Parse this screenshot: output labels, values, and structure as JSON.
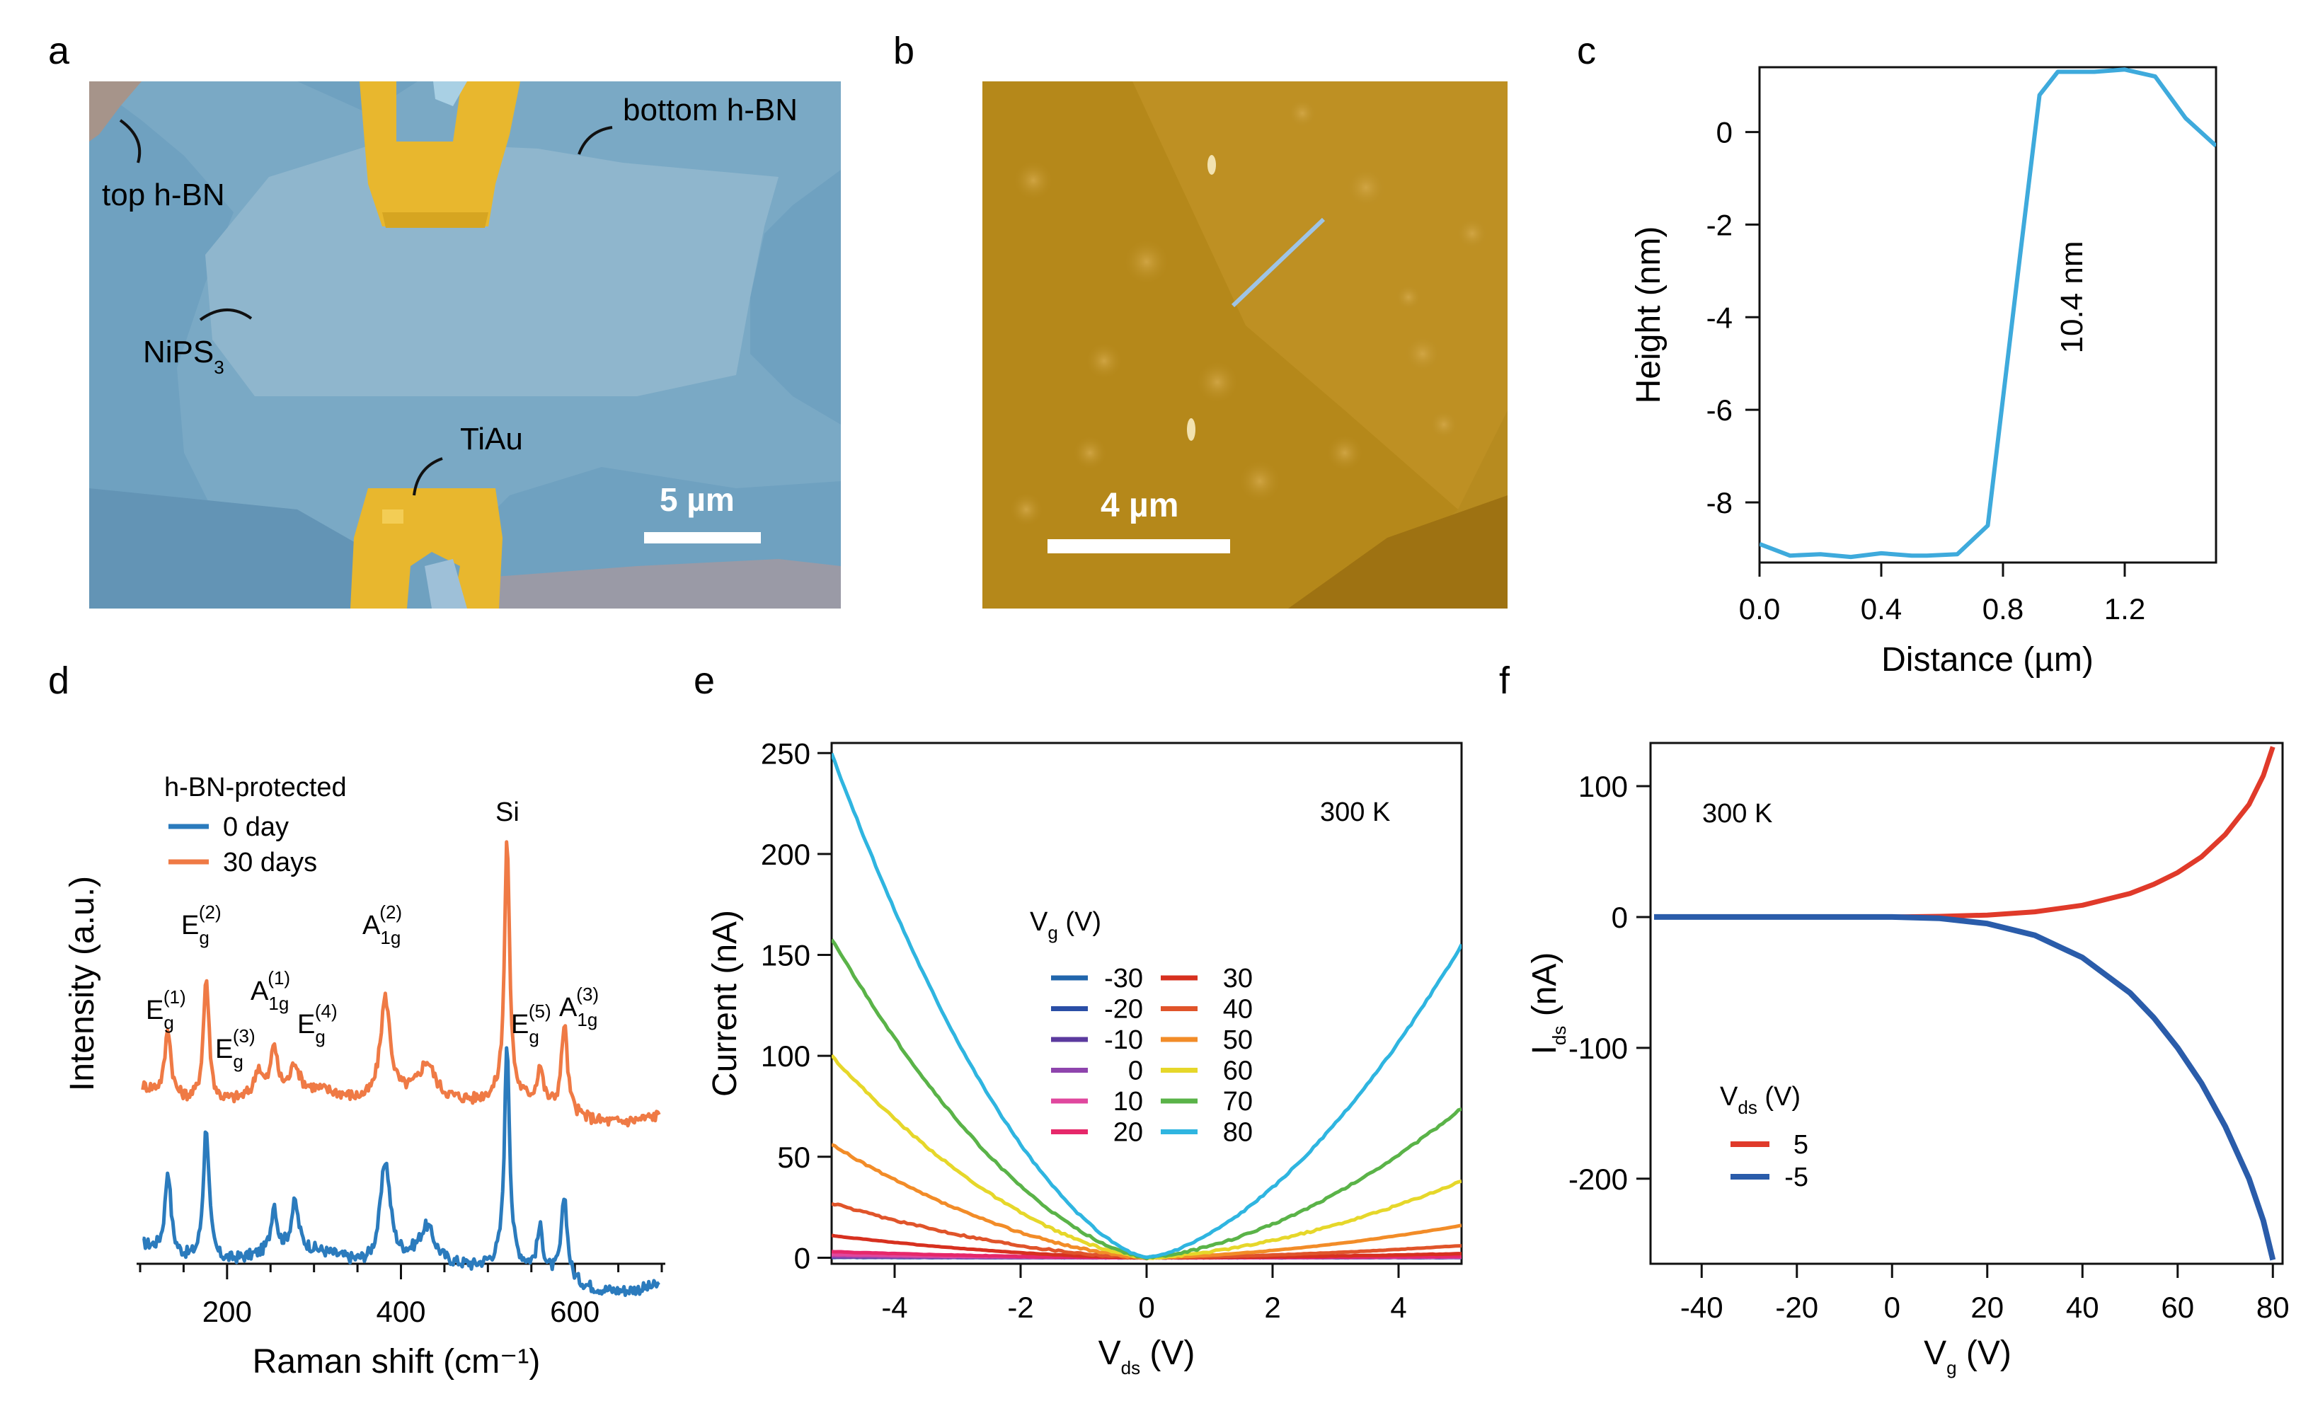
{
  "panels": {
    "a": {
      "letter": "a",
      "labels": {
        "top_hbn": "top h-BN",
        "bottom_hbn": "bottom h-BN",
        "niPS3_main": "NiPS",
        "niPS3_sub": "3",
        "tiau": "TiAu"
      },
      "scalebar": "5 µm",
      "colors": {
        "hbn": "#6fa1c0",
        "niPS3": "#8db2ca",
        "gold": "#e8b72e",
        "substrate": "#8f9fb0"
      }
    },
    "b": {
      "letter": "b",
      "scalebar": "4 µm",
      "colors": {
        "base": "#b78b1f",
        "flake": "#a87a14",
        "line": "#9ec4e6"
      }
    },
    "c": {
      "letter": "c",
      "xlabel": "Distance (µm)",
      "ylabel": "Height (nm)",
      "annotation": "10.4 nm",
      "color": "#3eaadc"
    },
    "d": {
      "letter": "d",
      "xlabel": "Raman shift (cm⁻¹)",
      "ylabel": "Intensity (a.u.)",
      "legend_title": "h-BN-protected",
      "series_labels": [
        "0 day",
        "30 days"
      ],
      "colors": [
        "#2b7bbd",
        "#ef7a45"
      ],
      "peaks": [
        {
          "main": "E",
          "sub": "g",
          "sup": "(1)"
        },
        {
          "main": "E",
          "sub": "g",
          "sup": "(2)"
        },
        {
          "main": "E",
          "sub": "g",
          "sup": "(3)"
        },
        {
          "main": "A",
          "sub": "1g",
          "sup": "(1)"
        },
        {
          "main": "E",
          "sub": "g",
          "sup": "(4)"
        },
        {
          "main": "A",
          "sub": "1g",
          "sup": "(2)"
        },
        {
          "main": "Si",
          "sub": "",
          "sup": ""
        },
        {
          "main": "E",
          "sub": "g",
          "sup": "(5)"
        },
        {
          "main": "A",
          "sub": "1g",
          "sup": "(3)"
        }
      ]
    },
    "e": {
      "letter": "e",
      "temperature": "300 K",
      "xlabel_main": "V",
      "xlabel_sub": "ds",
      "xlabel_unit": " (V)",
      "ylabel": "Current (nA)",
      "legend_title_main": "V",
      "legend_title_sub": "g",
      "legend_title_unit": " (V)"
    },
    "f": {
      "letter": "f",
      "temperature": "300 K",
      "xlabel_main": "V",
      "xlabel_sub": "g",
      "xlabel_unit": " (V)",
      "ylabel_main": "I",
      "ylabel_sub": "ds",
      "ylabel_unit": " (nA)",
      "legend_title_main": "V",
      "legend_title_sub": "ds",
      "legend_title_unit": " (V)"
    }
  },
  "chart_data": [
    {
      "panel": "c",
      "type": "line",
      "xlabel": "Distance (µm)",
      "ylabel": "Height (nm)",
      "xlim": [
        0,
        1.5
      ],
      "ylim": [
        -9.3,
        1.4
      ],
      "xticks": [
        0.0,
        0.4,
        0.8,
        1.2
      ],
      "xtick_labels": [
        "0.0",
        "0.4",
        "0.8",
        "1.2"
      ],
      "yticks": [
        0,
        -2,
        -4,
        -6,
        -8
      ],
      "ytick_labels": [
        "0",
        "-2",
        "-4",
        "-6",
        "-8"
      ],
      "series": [
        {
          "x": [
            0,
            0.1,
            0.2,
            0.3,
            0.4,
            0.5,
            0.55,
            0.65,
            0.75,
            0.85,
            0.92,
            0.98,
            1.1,
            1.2,
            1.3,
            1.4,
            1.5
          ],
          "values": [
            -8.9,
            -9.15,
            -9.12,
            -9.18,
            -9.1,
            -9.15,
            -9.15,
            -9.12,
            -8.5,
            -3.0,
            0.8,
            1.3,
            1.3,
            1.35,
            1.2,
            0.3,
            -0.3
          ]
        }
      ],
      "annotations": [
        "10.4 nm"
      ]
    },
    {
      "panel": "d",
      "type": "line",
      "xlabel": "Raman shift (cm⁻¹)",
      "ylabel": "Intensity (a.u.)",
      "xlim": [
        100,
        700
      ],
      "xticks": [
        200,
        400,
        600
      ],
      "xtick_labels": [
        "200",
        "400",
        "600"
      ],
      "minor_xticks": [
        100,
        150,
        250,
        300,
        350,
        450,
        500,
        550,
        650,
        700
      ],
      "y_units": "arbitrary (offset stack, 0 = baseline of 0 day trace)",
      "ylim": [
        -0.3,
        9.5
      ],
      "legend_title": "h-BN-protected",
      "series": [
        {
          "name": "0 day",
          "offset": 0,
          "peaks": [
            [
              132,
              1.6,
              4
            ],
            [
              176,
              2.6,
              4
            ],
            [
              254,
              0.9,
              4
            ],
            [
              278,
              0.9,
              5
            ],
            [
              382,
              2.0,
              7
            ],
            [
              430,
              0.6,
              10
            ],
            [
              522,
              4.3,
              3.5
            ],
            [
              560,
              0.8,
              4
            ],
            [
              588,
              1.6,
              4
            ]
          ]
        },
        {
          "name": "30 days",
          "offset": 3.05,
          "peaks": [
            [
              132,
              1.3,
              4
            ],
            [
              176,
              2.4,
              4
            ],
            [
              236,
              0.5,
              5
            ],
            [
              254,
              0.9,
              4
            ],
            [
              278,
              0.5,
              5
            ],
            [
              382,
              2.0,
              7
            ],
            [
              430,
              0.6,
              10
            ],
            [
              522,
              5.0,
              3.5
            ],
            [
              560,
              0.7,
              4
            ],
            [
              588,
              1.7,
              4
            ]
          ]
        }
      ],
      "peak_labels": [
        "E_g(1)",
        "E_g(2)",
        "E_g(3)",
        "A_1g(1)",
        "E_g(4)",
        "A_1g(2)",
        "Si",
        "E_g(5)",
        "A_1g(3)"
      ]
    },
    {
      "panel": "e",
      "type": "line",
      "xlabel": "V_ds (V)",
      "ylabel": "Current (nA)",
      "xlim": [
        -5,
        5
      ],
      "ylim": [
        -3,
        255
      ],
      "xticks": [
        -4,
        -2,
        0,
        2,
        4
      ],
      "xtick_labels": [
        "-4",
        "-2",
        "0",
        "2",
        "4"
      ],
      "yticks": [
        0,
        50,
        100,
        150,
        200,
        250
      ],
      "ytick_labels": [
        "0",
        "50",
        "100",
        "150",
        "200",
        "250"
      ],
      "legend_title": "V_g (V)",
      "series": [
        {
          "name": "-30",
          "color": "#2166ac",
          "I_at_minus5": 0.2,
          "I_at_plus5": 0.1
        },
        {
          "name": "-20",
          "color": "#2a4ea6",
          "I_at_minus5": 0.3,
          "I_at_plus5": 0.1
        },
        {
          "name": "-10",
          "color": "#5b3a9e",
          "I_at_minus5": 0.4,
          "I_at_plus5": 0.2
        },
        {
          "name": "0",
          "color": "#8e44ad",
          "I_at_minus5": 0.6,
          "I_at_plus5": 0.2
        },
        {
          "name": "10",
          "color": "#e0479e",
          "I_at_minus5": 1.5,
          "I_at_plus5": 0.4
        },
        {
          "name": "20",
          "color": "#e6286a",
          "I_at_minus5": 3.0,
          "I_at_plus5": 0.8
        },
        {
          "name": "30",
          "color": "#d7301f",
          "I_at_minus5": 11,
          "I_at_plus5": 2
        },
        {
          "name": "40",
          "color": "#e0542a",
          "I_at_minus5": 27,
          "I_at_plus5": 6
        },
        {
          "name": "50",
          "color": "#f28c28",
          "I_at_minus5": 56,
          "I_at_plus5": 16
        },
        {
          "name": "60",
          "color": "#e6d72a",
          "I_at_minus5": 100,
          "I_at_plus5": 38
        },
        {
          "name": "70",
          "color": "#5ab348",
          "I_at_minus5": 158,
          "I_at_plus5": 74
        },
        {
          "name": "80",
          "color": "#2fb5e0",
          "I_at_minus5": 250,
          "I_at_plus5": 155
        }
      ],
      "annotations": [
        "300 K"
      ]
    },
    {
      "panel": "f",
      "type": "line",
      "xlabel": "V_g (V)",
      "ylabel": "I_ds (nA)",
      "xlim": [
        -50,
        81
      ],
      "ylim": [
        -265,
        133
      ],
      "xticks": [
        -40,
        -20,
        0,
        20,
        40,
        60,
        80
      ],
      "xtick_labels": [
        "-40",
        "-20",
        "0",
        "20",
        "40",
        "60",
        "80"
      ],
      "yticks": [
        100,
        0,
        -100,
        -200
      ],
      "ytick_labels": [
        "100",
        "0",
        "-100",
        "-200"
      ],
      "legend_title": "V_ds (V)",
      "series": [
        {
          "name": "5",
          "color": "#e03a2a",
          "x": [
            -50,
            0,
            10,
            20,
            30,
            40,
            50,
            55,
            60,
            65,
            70,
            75,
            78,
            80
          ],
          "values": [
            0,
            0,
            0.5,
            1.5,
            4,
            9,
            18,
            25,
            34,
            46,
            63,
            86,
            108,
            130
          ]
        },
        {
          "name": "-5",
          "color": "#2a5caa",
          "x": [
            -50,
            0,
            10,
            20,
            30,
            40,
            50,
            55,
            60,
            65,
            70,
            75,
            78,
            80
          ],
          "values": [
            0,
            0,
            -1,
            -5,
            -14,
            -31,
            -58,
            -77,
            -100,
            -127,
            -160,
            -200,
            -232,
            -262
          ]
        }
      ],
      "annotations": [
        "300 K"
      ]
    }
  ]
}
